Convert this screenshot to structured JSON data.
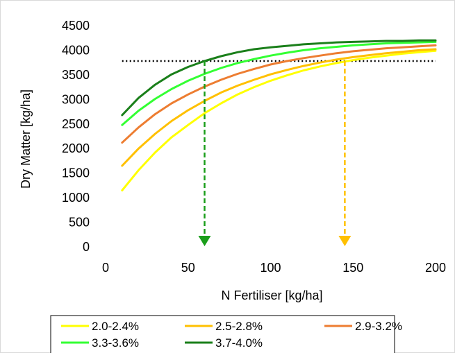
{
  "chart_data": {
    "type": "line",
    "title": "",
    "xlabel": "N Fertiliser [kg/ha]",
    "ylabel": "Dry Matter [kg/ha]",
    "xlim": [
      0,
      200
    ],
    "ylim": [
      0,
      4500
    ],
    "xticks": [
      0,
      50,
      100,
      150,
      200
    ],
    "yticks": [
      0,
      500,
      1000,
      1500,
      2000,
      2500,
      3000,
      3500,
      4000,
      4500
    ],
    "grid": false,
    "legend_position": "bottom",
    "x": [
      10,
      20,
      30,
      40,
      50,
      60,
      70,
      80,
      90,
      100,
      110,
      120,
      130,
      140,
      150,
      160,
      170,
      180,
      190,
      200
    ],
    "series": [
      {
        "name": "2.0-2.4%",
        "color": "#ffff00",
        "values": [
          1150,
          1560,
          1920,
          2230,
          2480,
          2720,
          2920,
          3100,
          3250,
          3380,
          3490,
          3590,
          3670,
          3740,
          3800,
          3850,
          3890,
          3930,
          3960,
          3990
        ]
      },
      {
        "name": "2.5-2.8%",
        "color": "#ffc000",
        "values": [
          1650,
          2000,
          2300,
          2560,
          2780,
          2970,
          3140,
          3280,
          3400,
          3510,
          3600,
          3680,
          3750,
          3810,
          3860,
          3900,
          3940,
          3970,
          4000,
          4020
        ]
      },
      {
        "name": "2.9-3.2%",
        "color": "#ed7d31",
        "values": [
          2120,
          2430,
          2700,
          2920,
          3100,
          3260,
          3400,
          3520,
          3620,
          3710,
          3780,
          3840,
          3890,
          3940,
          3980,
          4010,
          4040,
          4060,
          4080,
          4100
        ]
      },
      {
        "name": "3.3-3.6%",
        "color": "#33ff33",
        "values": [
          2480,
          2770,
          3010,
          3210,
          3380,
          3520,
          3640,
          3740,
          3820,
          3890,
          3950,
          4000,
          4040,
          4070,
          4100,
          4120,
          4140,
          4150,
          4160,
          4170
        ]
      },
      {
        "name": "3.7-4.0%",
        "color": "#1a7f1a",
        "values": [
          2680,
          3030,
          3300,
          3510,
          3660,
          3780,
          3880,
          3960,
          4020,
          4060,
          4090,
          4120,
          4140,
          4160,
          4170,
          4180,
          4190,
          4190,
          4200,
          4200
        ]
      }
    ],
    "annotations": {
      "target_line": {
        "y": 3780,
        "x_start": 10,
        "x_end": 200,
        "color": "#000000",
        "style": "dotted"
      },
      "arrows": [
        {
          "x": 60,
          "y_from": 3780,
          "y_to": 0,
          "color": "#1a9e1a",
          "style": "dashed"
        },
        {
          "x": 145,
          "y_from": 3780,
          "y_to": 0,
          "color": "#ffc000",
          "style": "dashed"
        }
      ]
    }
  }
}
